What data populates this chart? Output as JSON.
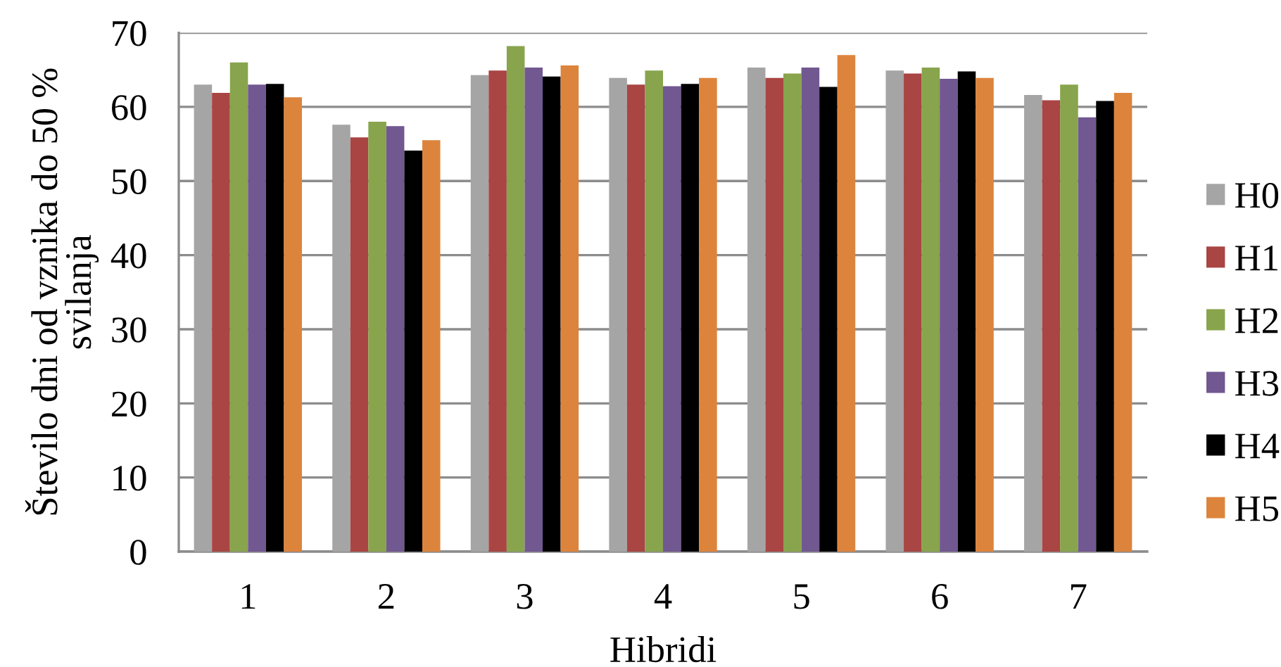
{
  "chart_data": {
    "type": "bar",
    "xlabel": "Hibridi",
    "ylabel": "Število dni od vznika do 50 %\nsvilanja",
    "categories": [
      "1",
      "2",
      "3",
      "4",
      "5",
      "6",
      "7"
    ],
    "series": [
      {
        "name": "H0",
        "color": "#a5a5a5",
        "values": [
          63.0,
          57.6,
          64.3,
          63.9,
          65.3,
          64.9,
          61.6
        ]
      },
      {
        "name": "H1",
        "color": "#a94543",
        "values": [
          61.9,
          55.9,
          64.9,
          63.0,
          63.9,
          64.5,
          60.9
        ]
      },
      {
        "name": "H2",
        "color": "#88a44d",
        "values": [
          66.0,
          58.0,
          68.2,
          64.9,
          64.5,
          65.3,
          63.0
        ]
      },
      {
        "name": "H3",
        "color": "#715891",
        "values": [
          63.0,
          57.4,
          65.3,
          62.8,
          65.3,
          63.8,
          58.6
        ]
      },
      {
        "name": "H4",
        "color": "#000000",
        "values": [
          63.1,
          54.1,
          64.1,
          63.1,
          62.7,
          64.8,
          60.8
        ]
      },
      {
        "name": "H5",
        "color": "#dd843c",
        "values": [
          61.3,
          55.5,
          65.6,
          63.9,
          67.0,
          63.9,
          61.9
        ]
      }
    ],
    "ylim": [
      0,
      70
    ],
    "yticks": [
      0,
      10,
      20,
      30,
      40,
      50,
      60,
      70
    ],
    "grid": "y",
    "legend": "right"
  }
}
